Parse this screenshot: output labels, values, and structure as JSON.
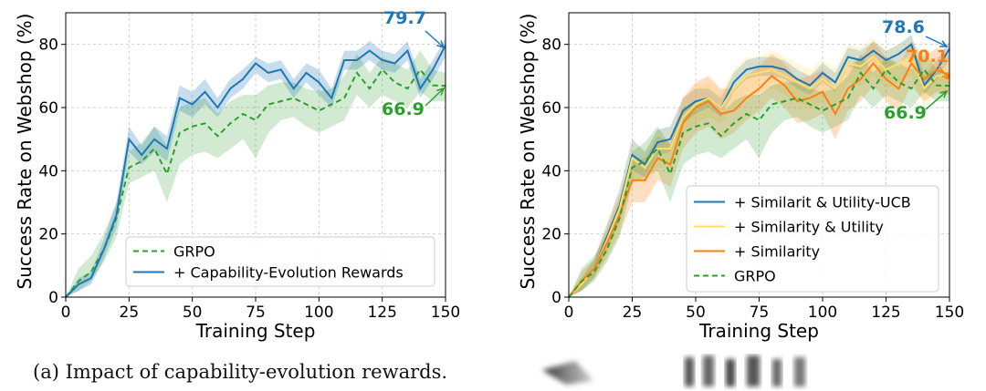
{
  "caption_a": "(a) Impact of capability-evolution rewards.",
  "chart_data": [
    {
      "type": "line",
      "xlabel": "Training Step",
      "ylabel": "Success Rate on Webshop (%)",
      "xlim": [
        0,
        150
      ],
      "ylim": [
        0,
        90
      ],
      "xticks": [
        0,
        25,
        50,
        75,
        100,
        125,
        150
      ],
      "yticks": [
        0,
        20,
        40,
        60,
        80
      ],
      "grid": true,
      "legend_position": "lower-right",
      "x": [
        0,
        5,
        10,
        15,
        20,
        25,
        30,
        35,
        40,
        45,
        50,
        55,
        60,
        65,
        70,
        75,
        80,
        85,
        90,
        95,
        100,
        105,
        110,
        115,
        120,
        125,
        130,
        135,
        140,
        145,
        150
      ],
      "series": [
        {
          "name": "GRPO",
          "color": "#2ca02c",
          "style": "dashed",
          "values": [
            0,
            5,
            8,
            15,
            25,
            41,
            43,
            47,
            39,
            52,
            54,
            55,
            51,
            55,
            58,
            56,
            61,
            62,
            63,
            61,
            59,
            61,
            63,
            71,
            66,
            72,
            68,
            66,
            72,
            67,
            66.9
          ],
          "lower": [
            0,
            2,
            5,
            11,
            19,
            36,
            38,
            40,
            30,
            42,
            45,
            46,
            44,
            47,
            50,
            44,
            52,
            56,
            57,
            54,
            52,
            54,
            56,
            64,
            60,
            64,
            62,
            60,
            65,
            62,
            62
          ],
          "upper": [
            0,
            9,
            13,
            20,
            30,
            46,
            49,
            54,
            48,
            60,
            62,
            63,
            58,
            62,
            64,
            64,
            67,
            68,
            68,
            66,
            65,
            66,
            70,
            77,
            71,
            76,
            74,
            72,
            78,
            72,
            71
          ]
        },
        {
          "name": "+ Capability-Evolution Rewards",
          "color": "#1f77b4",
          "style": "solid",
          "values": [
            0,
            4,
            6,
            15,
            26,
            50,
            45,
            50,
            47,
            63,
            61,
            65,
            60,
            66,
            69,
            74,
            71,
            72,
            66,
            71,
            68,
            63,
            75,
            75,
            78,
            75,
            74,
            78,
            66,
            72,
            79.7
          ],
          "lower": [
            0,
            2,
            4,
            12,
            22,
            46,
            42,
            46,
            43,
            59,
            57,
            61,
            57,
            63,
            66,
            71,
            68,
            69,
            63,
            68,
            64,
            60,
            72,
            72,
            75,
            72,
            71,
            75,
            63,
            69,
            76
          ],
          "upper": [
            0,
            6,
            8,
            18,
            30,
            54,
            48,
            54,
            51,
            67,
            65,
            69,
            63,
            69,
            72,
            76,
            74,
            75,
            69,
            74,
            72,
            66,
            78,
            78,
            81,
            78,
            77,
            81,
            69,
            75,
            82
          ]
        }
      ],
      "annotations": [
        {
          "text": "79.7",
          "color": "#1f77b4"
        },
        {
          "text": "66.9",
          "color": "#2ca02c"
        }
      ]
    },
    {
      "type": "line",
      "xlabel": "Training Step",
      "ylabel": "Success Rate on Webshop (%)",
      "xlim": [
        0,
        150
      ],
      "ylim": [
        0,
        90
      ],
      "xticks": [
        0,
        25,
        50,
        75,
        100,
        125,
        150
      ],
      "yticks": [
        0,
        20,
        40,
        60,
        80
      ],
      "grid": true,
      "legend_position": "lower-right",
      "x": [
        0,
        5,
        10,
        15,
        20,
        25,
        30,
        35,
        40,
        45,
        50,
        55,
        60,
        65,
        70,
        75,
        80,
        85,
        90,
        95,
        100,
        105,
        110,
        115,
        120,
        125,
        130,
        135,
        140,
        145,
        150
      ],
      "series": [
        {
          "name": "+ Similarit & Utility-UCB",
          "color": "#1f77b4",
          "style": "solid",
          "values": [
            0,
            4,
            9,
            19,
            29,
            45,
            42,
            49,
            50,
            59,
            62,
            63,
            60,
            68,
            72,
            73,
            73,
            72,
            69,
            67,
            71,
            68,
            76,
            75,
            78,
            75,
            77,
            80,
            67,
            72,
            78.6
          ],
          "lower": [
            0,
            2,
            6,
            15,
            24,
            40,
            38,
            45,
            46,
            55,
            58,
            60,
            57,
            65,
            69,
            70,
            70,
            69,
            66,
            64,
            68,
            65,
            73,
            72,
            75,
            72,
            74,
            77,
            64,
            69,
            75
          ],
          "upper": [
            0,
            6,
            12,
            23,
            34,
            50,
            46,
            53,
            54,
            63,
            66,
            66,
            63,
            71,
            75,
            76,
            76,
            75,
            72,
            70,
            74,
            71,
            79,
            78,
            81,
            78,
            80,
            83,
            70,
            75,
            81
          ]
        },
        {
          "name": "+ Similarity & Utility",
          "color": "#ffe066",
          "style": "solid",
          "values": [
            0,
            4,
            9,
            18,
            28,
            44,
            41,
            47,
            47,
            57,
            61,
            63,
            60,
            66,
            70,
            71,
            72,
            70,
            68,
            66,
            69,
            66,
            74,
            73,
            76,
            72,
            74,
            76,
            66,
            70,
            70.5
          ],
          "lower": [
            0,
            2,
            6,
            13,
            22,
            38,
            36,
            41,
            41,
            51,
            55,
            57,
            55,
            60,
            64,
            65,
            66,
            64,
            62,
            60,
            62,
            60,
            68,
            67,
            70,
            66,
            68,
            70,
            60,
            64,
            65
          ],
          "upper": [
            0,
            6,
            12,
            23,
            34,
            50,
            46,
            53,
            53,
            63,
            67,
            68,
            65,
            72,
            76,
            76,
            78,
            76,
            74,
            72,
            75,
            72,
            80,
            79,
            82,
            78,
            80,
            82,
            72,
            76,
            76
          ]
        },
        {
          "name": "+ Similarity",
          "color": "#ff7f0e",
          "style": "solid",
          "values": [
            0,
            5,
            9,
            17,
            26,
            37,
            37,
            44,
            42,
            55,
            60,
            62,
            58,
            59,
            63,
            66,
            70,
            67,
            62,
            63,
            65,
            58,
            66,
            69,
            74,
            69,
            66,
            74,
            69,
            72,
            70.1
          ],
          "lower": [
            0,
            2,
            6,
            12,
            20,
            30,
            30,
            37,
            35,
            47,
            52,
            54,
            50,
            52,
            56,
            59,
            63,
            60,
            55,
            56,
            58,
            50,
            59,
            62,
            67,
            62,
            59,
            67,
            62,
            65,
            64
          ],
          "upper": [
            0,
            8,
            12,
            22,
            32,
            44,
            44,
            51,
            49,
            63,
            68,
            70,
            66,
            66,
            70,
            73,
            77,
            74,
            69,
            70,
            72,
            66,
            73,
            76,
            81,
            76,
            73,
            81,
            76,
            79,
            76
          ]
        },
        {
          "name": "GRPO",
          "color": "#2ca02c",
          "style": "dashed",
          "values": [
            0,
            5,
            8,
            15,
            25,
            41,
            43,
            47,
            39,
            52,
            54,
            55,
            51,
            55,
            58,
            56,
            61,
            62,
            63,
            61,
            59,
            61,
            63,
            71,
            66,
            72,
            68,
            66,
            72,
            67,
            66.9
          ],
          "lower": [
            0,
            2,
            5,
            11,
            19,
            36,
            38,
            40,
            30,
            42,
            45,
            46,
            44,
            47,
            50,
            44,
            52,
            56,
            57,
            54,
            52,
            54,
            56,
            64,
            60,
            64,
            62,
            60,
            65,
            62,
            62
          ],
          "upper": [
            0,
            9,
            13,
            20,
            30,
            46,
            49,
            54,
            48,
            60,
            62,
            63,
            58,
            62,
            64,
            64,
            67,
            68,
            68,
            66,
            65,
            66,
            70,
            77,
            71,
            76,
            74,
            72,
            78,
            72,
            71
          ]
        }
      ],
      "annotations": [
        {
          "text": "78.6",
          "color": "#1f77b4"
        },
        {
          "text": "70.1",
          "color": "#ff7f0e"
        },
        {
          "text": "66.9",
          "color": "#2ca02c"
        }
      ]
    }
  ]
}
